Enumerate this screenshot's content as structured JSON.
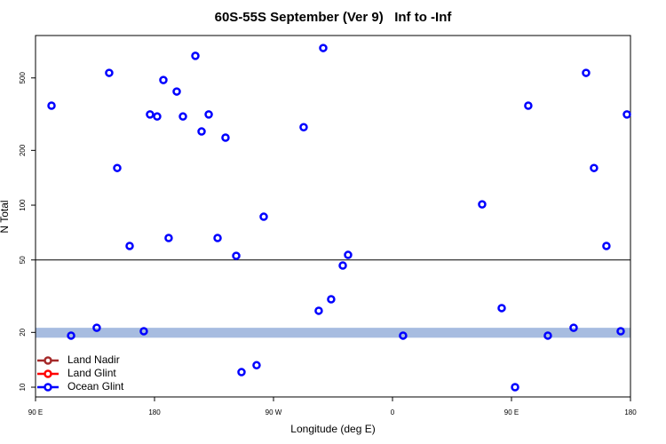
{
  "chart_data": {
    "type": "scatter",
    "title": "60S-55S September (Ver 9)   Inf to -Inf",
    "x_label": "Longitude (deg E)",
    "y_label": "N Total",
    "xlim": [
      90,
      540
    ],
    "xticks": [
      {
        "value": 90,
        "label": "90 E"
      },
      {
        "value": 180,
        "label": "180"
      },
      {
        "value": 270,
        "label": "90 W"
      },
      {
        "value": 360,
        "label": "0"
      },
      {
        "value": 450,
        "label": "90 E"
      },
      {
        "value": 540,
        "label": "180"
      }
    ],
    "ylim": [
      8.84,
      855
    ],
    "log_y": true,
    "yticks": [
      10,
      20,
      50,
      100,
      200,
      500
    ],
    "reference_line": 50,
    "band": [
      18.7,
      21.2
    ],
    "band_color": "#a7bce0",
    "legend": "bottom-left",
    "series": [
      {
        "name": "Land Nadir",
        "color": "#a52a2a",
        "x": [],
        "values": []
      },
      {
        "name": "Land Glint",
        "color": "#ff0000",
        "x": [],
        "values": []
      },
      {
        "name": "Ocean Glint",
        "color": "#0000ff",
        "x": [
          102.1,
          116.9,
          136.3,
          145.7,
          151.8,
          161.2,
          171.9,
          176.6,
          182.0,
          186.7,
          190.7,
          196.8,
          201.5,
          210.9,
          215.6,
          221.0,
          227.7,
          233.7,
          241.8,
          245.8,
          257.2,
          262.6,
          292.8,
          304.2,
          307.6,
          313.6,
          322.4,
          326.4,
          368.0,
          427.8,
          442.6,
          452.7,
          462.7,
          477.5,
          497.0,
          506.4,
          512.4,
          521.8,
          532.6,
          537.3
        ],
        "values": [
          352,
          19.2,
          21.2,
          533,
          160,
          59.7,
          20.3,
          315,
          307,
          487,
          66,
          421,
          307,
          661,
          254,
          315,
          66,
          235,
          52.7,
          12.1,
          13.2,
          86.4,
          268,
          26.3,
          730,
          30.4,
          46.6,
          53.3,
          19.2,
          101,
          27.2,
          10,
          352,
          19.2,
          21.2,
          533,
          160,
          59.7,
          20.3,
          315
        ]
      }
    ]
  }
}
